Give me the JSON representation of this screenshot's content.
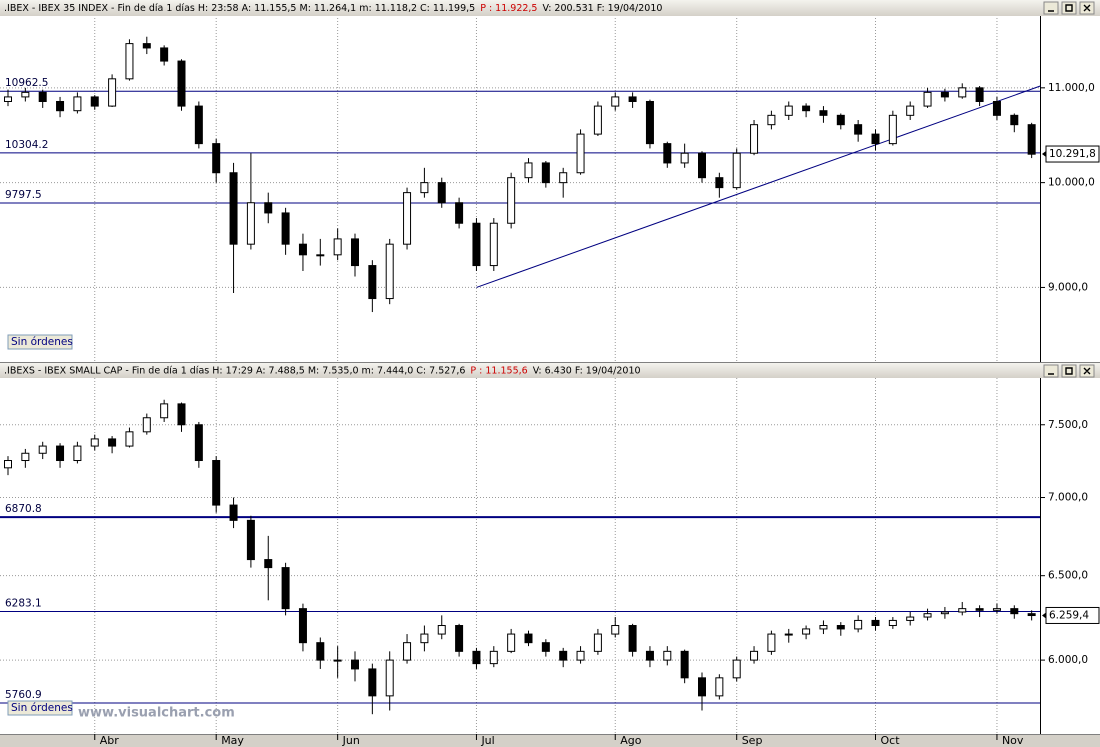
{
  "chart_data": [
    {
      "type": "candlestick",
      "title": [
        ".IBEX - IBEX 35 INDEX - Fin de día 1 días H: 23:58 A: 11.155,5 M: 11.264,1 m: 11.118,2 C: 11.199,5",
        "P : 11.922,5",
        "V: 200.531 F: 19/04/2010"
      ],
      "ylim": [
        8350,
        11800
      ],
      "log": true,
      "yticks": [
        {
          "value": 9000,
          "label": "9.000,0"
        },
        {
          "value": 10000,
          "label": "10.000,0"
        },
        {
          "value": 11000,
          "label": "11.000,0"
        }
      ],
      "up_color": "#ffffff",
      "down_color": "#000000",
      "line_color": "#000080",
      "levels": [
        {
          "value": 10962.5,
          "label": "10962.5"
        },
        {
          "value": 10304.2,
          "label": "10304.2"
        },
        {
          "value": 9797.5,
          "label": "9797.5"
        }
      ],
      "trendline": {
        "x": [
          27,
          59.5
        ],
        "y": [
          9000,
          11020
        ]
      },
      "last": {
        "value": 10291.8,
        "label": "10.291,8"
      },
      "order_button": "Sin órdenes",
      "ohlc": [
        [
          10850,
          10980,
          10800,
          10900
        ],
        [
          10900,
          11000,
          10850,
          10950
        ],
        [
          10950,
          10980,
          10780,
          10850
        ],
        [
          10850,
          10900,
          10680,
          10750
        ],
        [
          10750,
          10950,
          10720,
          10900
        ],
        [
          10900,
          10920,
          10760,
          10800
        ],
        [
          10800,
          11150,
          10790,
          11100
        ],
        [
          11100,
          11550,
          11080,
          11500
        ],
        [
          11500,
          11580,
          11380,
          11450
        ],
        [
          11450,
          11480,
          11250,
          11300
        ],
        [
          11300,
          11320,
          10750,
          10800
        ],
        [
          10800,
          10850,
          10350,
          10400
        ],
        [
          10400,
          10450,
          10000,
          10100
        ],
        [
          10100,
          10200,
          8950,
          9400
        ],
        [
          9400,
          10300,
          9350,
          9800
        ],
        [
          9800,
          9900,
          9600,
          9700
        ],
        [
          9700,
          9750,
          9300,
          9400
        ],
        [
          9400,
          9500,
          9150,
          9300
        ],
        [
          9300,
          9450,
          9200,
          9300
        ],
        [
          9300,
          9550,
          9250,
          9450
        ],
        [
          9450,
          9500,
          9100,
          9200
        ],
        [
          9200,
          9250,
          8780,
          8900
        ],
        [
          8900,
          9450,
          8850,
          9400
        ],
        [
          9400,
          9950,
          9350,
          9900
        ],
        [
          9900,
          10150,
          9850,
          10000
        ],
        [
          10000,
          10050,
          9750,
          9800
        ],
        [
          9800,
          9850,
          9550,
          9600
        ],
        [
          9600,
          9650,
          9150,
          9200
        ],
        [
          9200,
          9650,
          9150,
          9600
        ],
        [
          9600,
          10100,
          9550,
          10050
        ],
        [
          10050,
          10250,
          10000,
          10200
        ],
        [
          10200,
          10220,
          9950,
          10000
        ],
        [
          10000,
          10150,
          9850,
          10100
        ],
        [
          10100,
          10550,
          10080,
          10500
        ],
        [
          10500,
          10850,
          10480,
          10800
        ],
        [
          10800,
          10950,
          10750,
          10900
        ],
        [
          10900,
          10950,
          10780,
          10850
        ],
        [
          10850,
          10870,
          10350,
          10400
        ],
        [
          10400,
          10420,
          10150,
          10200
        ],
        [
          10200,
          10400,
          10150,
          10300
        ],
        [
          10300,
          10320,
          10000,
          10050
        ],
        [
          10050,
          10100,
          9850,
          9950
        ],
        [
          9950,
          10350,
          9930,
          10300
        ],
        [
          10300,
          10650,
          10280,
          10600
        ],
        [
          10600,
          10750,
          10550,
          10700
        ],
        [
          10700,
          10850,
          10650,
          10800
        ],
        [
          10800,
          10830,
          10680,
          10750
        ],
        [
          10750,
          10800,
          10620,
          10700
        ],
        [
          10700,
          10720,
          10550,
          10600
        ],
        [
          10600,
          10650,
          10420,
          10500
        ],
        [
          10500,
          10550,
          10330,
          10400
        ],
        [
          10400,
          10750,
          10380,
          10700
        ],
        [
          10700,
          10850,
          10650,
          10800
        ],
        [
          10800,
          11000,
          10780,
          10950
        ],
        [
          10950,
          10990,
          10850,
          10900
        ],
        [
          10900,
          11050,
          10880,
          11000
        ],
        [
          11000,
          11020,
          10800,
          10850
        ],
        [
          10850,
          10900,
          10650,
          10700
        ],
        [
          10700,
          10720,
          10520,
          10600
        ],
        [
          10600,
          10620,
          10250,
          10290
        ]
      ]
    },
    {
      "type": "candlestick",
      "title": [
        ".IBEXS - IBEX SMALL CAP - Fin de día 1 días H: 17:29 A: 7.488,5 M: 7.535,0 m: 7.444,0 C: 7.527,6",
        "P : 11.155,6",
        "V: 6.430 F: 19/04/2010"
      ],
      "ylim": [
        5658,
        7840
      ],
      "log": true,
      "yticks": [
        {
          "value": 6000,
          "label": "6.000,0"
        },
        {
          "value": 6500,
          "label": "6.500,0"
        },
        {
          "value": 7000,
          "label": "7.000,0"
        },
        {
          "value": 7500,
          "label": "7.500,0"
        }
      ],
      "up_color": "#ffffff",
      "down_color": "#000000",
      "line_color": "#000080",
      "levels": [
        {
          "value": 6870.8,
          "label": "6870.8"
        },
        {
          "value": 6283.1,
          "label": "6283.1"
        },
        {
          "value": 5760.9,
          "label": "5760.9"
        }
      ],
      "last": {
        "value": 6259.4,
        "label": "6.259,4"
      },
      "order_button": "Sin órdenes",
      "categories": [
        null,
        null,
        null,
        null,
        null,
        "Abr",
        null,
        null,
        null,
        null,
        null,
        null,
        "May",
        null,
        null,
        null,
        null,
        null,
        null,
        "Jun",
        null,
        null,
        null,
        null,
        null,
        null,
        null,
        "Jul",
        null,
        null,
        null,
        null,
        null,
        null,
        null,
        "Ago",
        null,
        null,
        null,
        null,
        null,
        null,
        "Sep",
        null,
        null,
        null,
        null,
        null,
        null,
        null,
        "Oct",
        null,
        null,
        null,
        null,
        null,
        null,
        "Nov",
        null,
        null
      ],
      "ohlc": [
        [
          7200,
          7280,
          7150,
          7250
        ],
        [
          7250,
          7330,
          7200,
          7300
        ],
        [
          7300,
          7380,
          7260,
          7350
        ],
        [
          7350,
          7370,
          7200,
          7250
        ],
        [
          7250,
          7380,
          7230,
          7350
        ],
        [
          7350,
          7430,
          7320,
          7400
        ],
        [
          7400,
          7420,
          7300,
          7350
        ],
        [
          7350,
          7480,
          7340,
          7450
        ],
        [
          7450,
          7580,
          7430,
          7550
        ],
        [
          7550,
          7680,
          7520,
          7650
        ],
        [
          7650,
          7660,
          7450,
          7500
        ],
        [
          7500,
          7520,
          7200,
          7250
        ],
        [
          7250,
          7280,
          6900,
          6950
        ],
        [
          6950,
          7000,
          6800,
          6850
        ],
        [
          6850,
          6880,
          6550,
          6600
        ],
        [
          6600,
          6750,
          6350,
          6550
        ],
        [
          6550,
          6580,
          6260,
          6300
        ],
        [
          6300,
          6330,
          6050,
          6100
        ],
        [
          6100,
          6130,
          5950,
          6000
        ],
        [
          6000,
          6080,
          5900,
          6000
        ],
        [
          6000,
          6050,
          5880,
          5950
        ],
        [
          5950,
          5980,
          5700,
          5800
        ],
        [
          5800,
          6050,
          5720,
          6000
        ],
        [
          6000,
          6150,
          5980,
          6100
        ],
        [
          6100,
          6200,
          6050,
          6150
        ],
        [
          6150,
          6260,
          6120,
          6200
        ],
        [
          6200,
          6210,
          6020,
          6050
        ],
        [
          6050,
          6070,
          5950,
          5980
        ],
        [
          5980,
          6080,
          5960,
          6050
        ],
        [
          6050,
          6180,
          6040,
          6150
        ],
        [
          6150,
          6170,
          6080,
          6100
        ],
        [
          6100,
          6120,
          6020,
          6050
        ],
        [
          6050,
          6070,
          5960,
          6000
        ],
        [
          6000,
          6080,
          5980,
          6050
        ],
        [
          6050,
          6180,
          6030,
          6150
        ],
        [
          6150,
          6250,
          6130,
          6200
        ],
        [
          6200,
          6210,
          6020,
          6050
        ],
        [
          6050,
          6080,
          5960,
          6000
        ],
        [
          6000,
          6080,
          5970,
          6050
        ],
        [
          6050,
          6060,
          5870,
          5900
        ],
        [
          5900,
          5930,
          5720,
          5800
        ],
        [
          5800,
          5920,
          5780,
          5900
        ],
        [
          5900,
          6020,
          5880,
          6000
        ],
        [
          6000,
          6080,
          5980,
          6050
        ],
        [
          6050,
          6170,
          6030,
          6150
        ],
        [
          6150,
          6180,
          6100,
          6150
        ],
        [
          6150,
          6200,
          6120,
          6180
        ],
        [
          6180,
          6230,
          6150,
          6200
        ],
        [
          6200,
          6220,
          6140,
          6180
        ],
        [
          6180,
          6260,
          6160,
          6230
        ],
        [
          6230,
          6250,
          6170,
          6200
        ],
        [
          6200,
          6250,
          6180,
          6230
        ],
        [
          6230,
          6280,
          6200,
          6250
        ],
        [
          6250,
          6300,
          6230,
          6270
        ],
        [
          6270,
          6310,
          6240,
          6280
        ],
        [
          6280,
          6340,
          6260,
          6300
        ],
        [
          6300,
          6320,
          6250,
          6290
        ],
        [
          6290,
          6330,
          6270,
          6300
        ],
        [
          6300,
          6320,
          6240,
          6270
        ],
        [
          6270,
          6290,
          6230,
          6259
        ]
      ]
    }
  ],
  "watermark": "www.visualchart.com"
}
